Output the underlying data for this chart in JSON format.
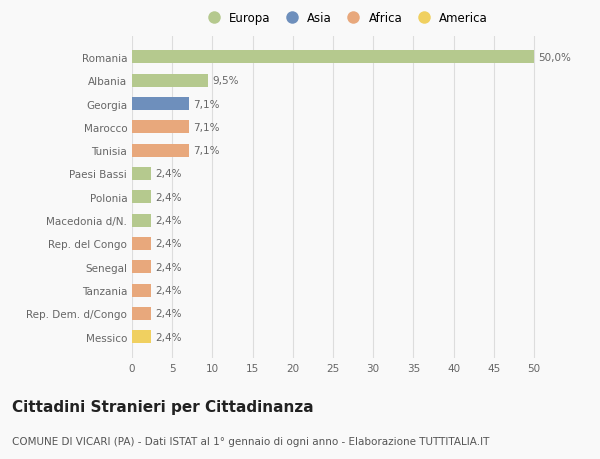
{
  "countries": [
    "Romania",
    "Albania",
    "Georgia",
    "Marocco",
    "Tunisia",
    "Paesi Bassi",
    "Polonia",
    "Macedonia d/N.",
    "Rep. del Congo",
    "Senegal",
    "Tanzania",
    "Rep. Dem. d/Congo",
    "Messico"
  ],
  "values": [
    50.0,
    9.5,
    7.1,
    7.1,
    7.1,
    2.4,
    2.4,
    2.4,
    2.4,
    2.4,
    2.4,
    2.4,
    2.4
  ],
  "labels": [
    "50,0%",
    "9,5%",
    "7,1%",
    "7,1%",
    "7,1%",
    "2,4%",
    "2,4%",
    "2,4%",
    "2,4%",
    "2,4%",
    "2,4%",
    "2,4%",
    "2,4%"
  ],
  "colors": [
    "#b5c98e",
    "#b5c98e",
    "#6e8fbc",
    "#e8a87c",
    "#e8a87c",
    "#b5c98e",
    "#b5c98e",
    "#b5c98e",
    "#e8a87c",
    "#e8a87c",
    "#e8a87c",
    "#e8a87c",
    "#f0d060"
  ],
  "legend_labels": [
    "Europa",
    "Asia",
    "Africa",
    "America"
  ],
  "legend_colors": [
    "#b5c98e",
    "#6e8fbc",
    "#e8a87c",
    "#f0d060"
  ],
  "title": "Cittadini Stranieri per Cittadinanza",
  "subtitle": "COMUNE DI VICARI (PA) - Dati ISTAT al 1° gennaio di ogni anno - Elaborazione TUTTITALIA.IT",
  "xlabel_ticks": [
    0,
    5,
    10,
    15,
    20,
    25,
    30,
    35,
    40,
    45,
    50
  ],
  "xlim_max": 53,
  "background_color": "#f9f9f9",
  "grid_color": "#dddddd",
  "bar_height": 0.55,
  "label_fontsize": 7.5,
  "tick_label_fontsize": 7.5,
  "title_fontsize": 11,
  "subtitle_fontsize": 7.5,
  "legend_fontsize": 8.5
}
